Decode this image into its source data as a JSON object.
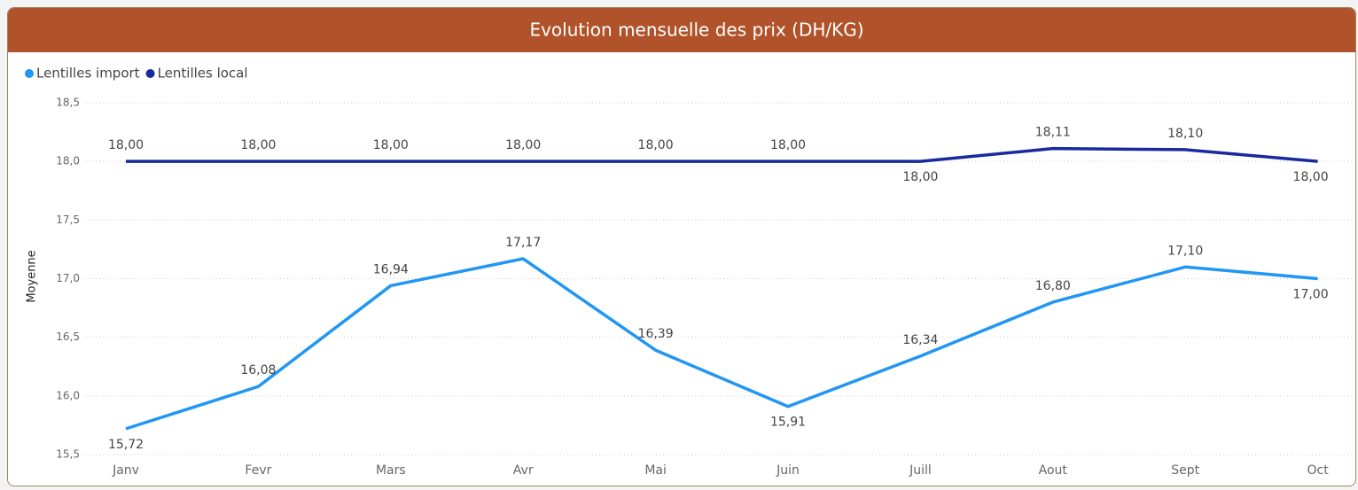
{
  "chart_data": {
    "type": "line",
    "title": "Evolution mensuelle des prix (DH/KG)",
    "y_label": "Moyenne",
    "categories": [
      "Janv",
      "Fevr",
      "Mars",
      "Avr",
      "Mai",
      "Juin",
      "Juill",
      "Aout",
      "Sept",
      "Oct"
    ],
    "series": [
      {
        "name": "Lentilles import",
        "color": "#2196f3",
        "values": [
          15.72,
          16.08,
          16.94,
          17.17,
          16.39,
          15.91,
          16.34,
          16.8,
          17.1,
          17.0
        ],
        "value_labels": [
          "15,72",
          "16,08",
          "16,94",
          "17,17",
          "16,39",
          "15,91",
          "16,34",
          "16,80",
          "17,10",
          "17,00"
        ]
      },
      {
        "name": "Lentilles local",
        "color": "#1a2a9c",
        "values": [
          18.0,
          18.0,
          18.0,
          18.0,
          18.0,
          18.0,
          18.0,
          18.11,
          18.1,
          18.0
        ],
        "value_labels": [
          "18,00",
          "18,00",
          "18,00",
          "18,00",
          "18,00",
          "18,00",
          "18,00",
          "18,11",
          "18,10",
          "18,00"
        ]
      }
    ],
    "ylim": [
      15.5,
      18.5
    ],
    "yticks": [
      {
        "value": 15.5,
        "label": "15,5"
      },
      {
        "value": 16.0,
        "label": "16,0"
      },
      {
        "value": 16.5,
        "label": "16,5"
      },
      {
        "value": 17.0,
        "label": "17,0"
      },
      {
        "value": 17.5,
        "label": "17,5"
      },
      {
        "value": 18.0,
        "label": "18,0"
      },
      {
        "value": 18.5,
        "label": "18,5"
      }
    ],
    "grid": true,
    "legend": "top-left"
  }
}
